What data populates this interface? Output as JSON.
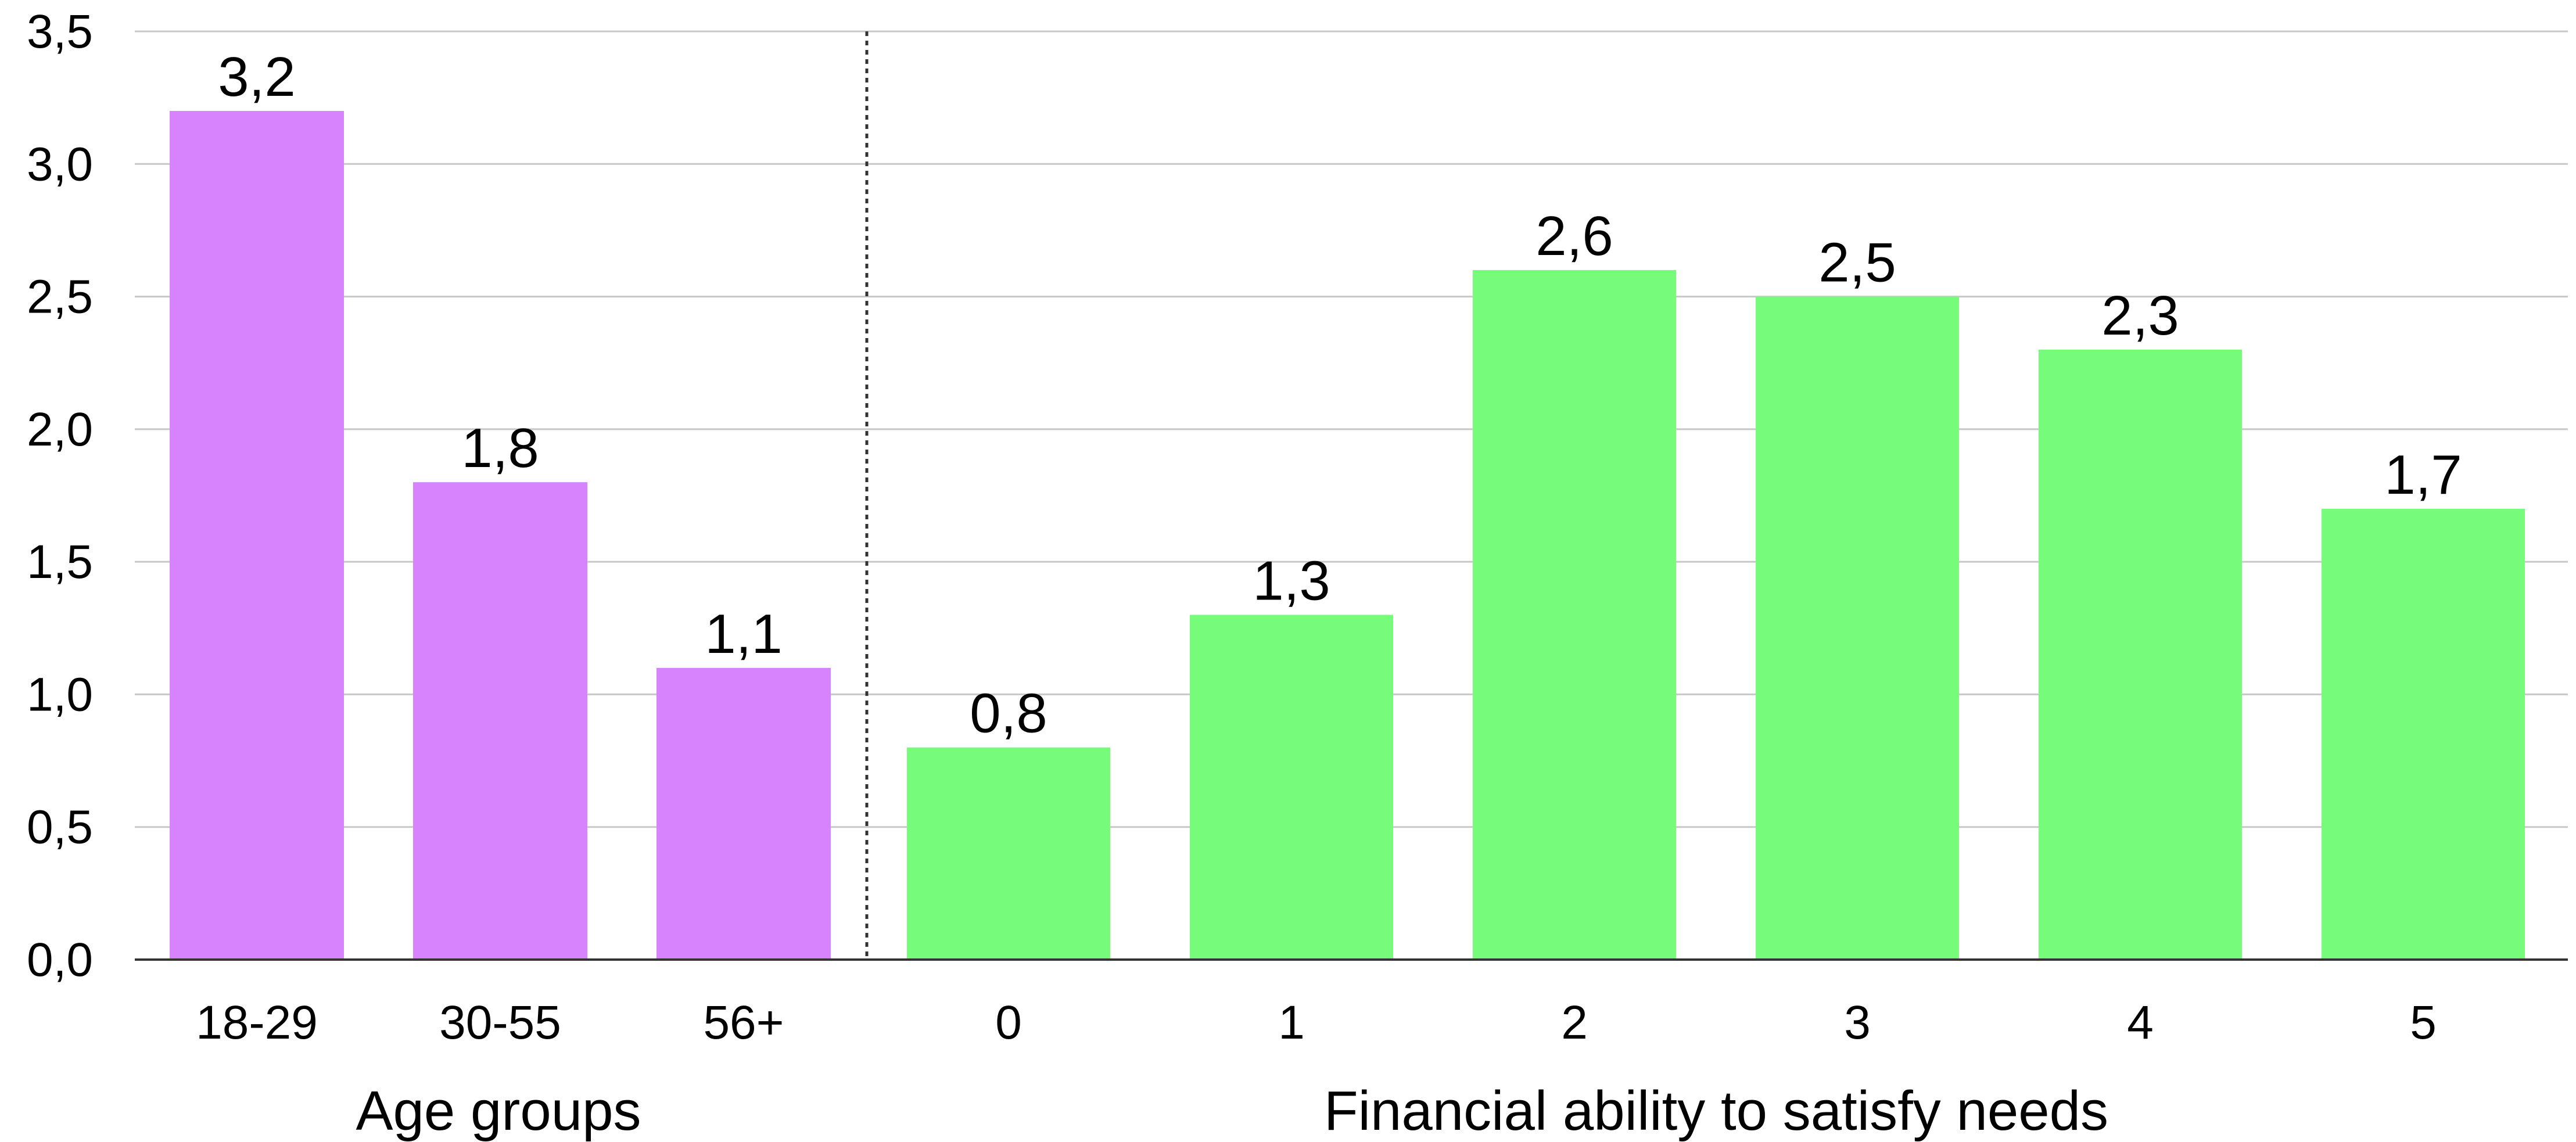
{
  "chart_data": {
    "type": "bar",
    "ylim": [
      0,
      3.5
    ],
    "yticks": [
      "0,0",
      "0,5",
      "1,0",
      "1,5",
      "2,0",
      "2,5",
      "3,0",
      "3,5"
    ],
    "grid": true,
    "groups": [
      {
        "label": "Age groups",
        "color": "#d683fd",
        "categories": [
          "18-29",
          "30-55",
          "56+"
        ],
        "values": [
          3.2,
          1.8,
          1.1
        ],
        "value_labels": [
          "3,2",
          "1,8",
          "1,1"
        ]
      },
      {
        "label": "Financial ability to satisfy needs",
        "color": "#77fb7a",
        "categories": [
          "0",
          "1",
          "2",
          "3",
          "4",
          "5"
        ],
        "values": [
          0.8,
          1.3,
          2.6,
          2.5,
          2.3,
          1.7
        ],
        "value_labels": [
          "0,8",
          "1,3",
          "2,6",
          "2,5",
          "2,3",
          "1,7"
        ]
      }
    ]
  }
}
